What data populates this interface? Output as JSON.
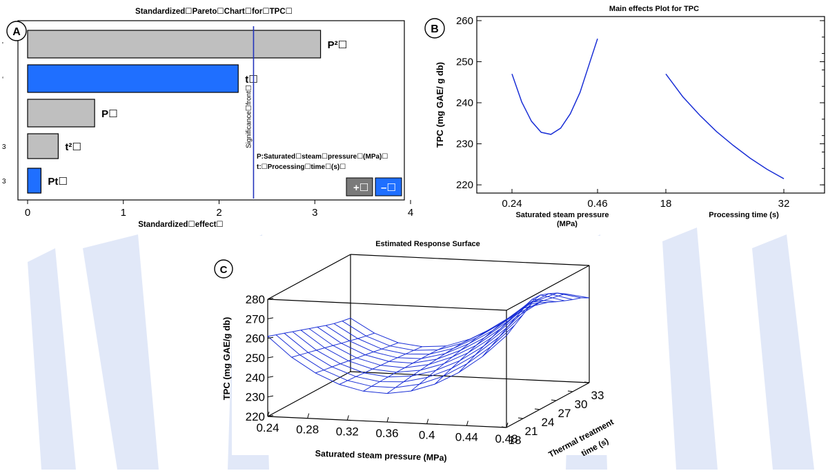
{
  "background": {
    "stripe_color": "#c9d6f3"
  },
  "panel_a": {
    "letter": "A",
    "title": "Standardized☐Pareto☐Chart☐for☐TPC☐",
    "xlabel": "Standardized☐effect☐",
    "significance_label": "Significance☐front☐",
    "legend_p": "P:Saturated☐steam☐pressure☐(MPa)☐",
    "legend_t": "t:☐Processing☐time☐(s)☐",
    "plus_label": "+☐",
    "minus_label": "–☐",
    "left_marks": [
      "'",
      "‘",
      "",
      "3",
      "3"
    ],
    "colors": {
      "positive": "#bfbfbf",
      "negative": "#1f6fff",
      "significance": "#2233bb"
    }
  },
  "panel_b": {
    "letter": "B",
    "title": "Main effects Plot for TPC",
    "ylabel": "TPC (mg GAE/ g db)",
    "xlabel_pressure": "Saturated steam pressure",
    "xlabel_pressure_unit": "(MPa)",
    "xlabel_time": "Processing time (s)",
    "colors": {
      "line": "#1a2fd6"
    }
  },
  "panel_c": {
    "letter": "C",
    "title": "Estimated Response Surface",
    "zlabel": "TPC (mg GAE/g db)",
    "xlabel": "Saturated steam pressure (MPa)",
    "ylabel_line1": "Thermal treatment",
    "ylabel_line2": "time (s)",
    "colors": {
      "mesh": "#1a2fd6"
    }
  },
  "chart_data": [
    {
      "type": "bar",
      "orientation": "horizontal",
      "title": "Standardized☐Pareto☐Chart☐for☐TPC☐",
      "xlabel": "Standardized☐effect☐",
      "xlim": [
        0,
        4
      ],
      "xticks": [
        "0",
        "1",
        "2",
        "3",
        "4"
      ],
      "significance_line": 2.36,
      "categories": [
        "P²☐",
        "t☐",
        "P☐",
        "t²☐",
        "Pt☐"
      ],
      "values": [
        3.06,
        2.2,
        0.7,
        0.32,
        0.14
      ],
      "signs": [
        "+",
        "-",
        "+",
        "+",
        "-"
      ]
    },
    {
      "type": "line",
      "title": "Main effects Plot for TPC",
      "ylabel": "TPC (mg GAE/ g db)",
      "ylim": [
        218,
        261
      ],
      "yticks": [
        "220",
        "230",
        "240",
        "250",
        "260"
      ],
      "series": [
        {
          "x_ticks": [
            "0.24",
            "0.46"
          ],
          "x": [
            0.24,
            0.265,
            0.29,
            0.315,
            0.34,
            0.365,
            0.39,
            0.415,
            0.44,
            0.46
          ],
          "y": [
            247.0,
            240.2,
            235.5,
            232.8,
            232.3,
            233.8,
            237.3,
            242.5,
            249.8,
            255.6
          ]
        },
        {
          "x_ticks": [
            "18",
            "32"
          ],
          "x": [
            18,
            20,
            22,
            24,
            26,
            28,
            30,
            32
          ],
          "y": [
            247.0,
            241.5,
            237.0,
            233.0,
            229.6,
            226.5,
            223.8,
            221.5
          ]
        }
      ]
    },
    {
      "type": "surface",
      "title": "Estimated Response Surface",
      "xlabel": "Saturated steam pressure (MPa)",
      "ylabel": "Thermal treatment time (s)",
      "zlabel": "TPC (mg GAE/g db)",
      "x_ticks": [
        "0.24",
        "0.28",
        "0.32",
        "0.36",
        "0.4",
        "0.44",
        "0.48"
      ],
      "y_ticks": [
        "18",
        "21",
        "24",
        "27",
        "30",
        "33"
      ],
      "z_ticks": [
        "220",
        "230",
        "240",
        "250",
        "260",
        "270",
        "280"
      ],
      "xlim": [
        0.24,
        0.48
      ],
      "ylim": [
        18,
        33
      ],
      "zlim": [
        220,
        280
      ],
      "z_grid": [
        [
          261,
          250.9,
          243.4,
          238.1,
          235.2,
          234.6,
          236.4,
          240.5,
          247.0,
          255.8,
          267.0
        ],
        [
          259.5,
          249.8,
          242.6,
          237.8,
          235.4,
          235.3,
          237.6,
          242.2,
          249.2,
          258.5,
          270.1
        ],
        [
          258.0,
          248.7,
          241.9,
          237.5,
          235.5,
          236.0,
          238.8,
          243.9,
          251.4,
          261.2,
          273.2
        ],
        [
          256.5,
          247.6,
          241.2,
          237.1,
          235.6,
          236.7,
          240.1,
          245.6,
          253.6,
          263.9,
          276.3
        ],
        [
          255.0,
          246.5,
          240.4,
          236.8,
          235.7,
          237.3,
          241.3,
          247.3,
          255.8,
          266.6,
          274.8
        ],
        [
          253.5,
          245.4,
          239.6,
          236.4,
          235.7,
          237.9,
          242.4,
          248.9,
          257.8,
          269.1,
          272.6
        ],
        [
          252.0,
          244.3,
          238.9,
          236.1,
          235.8,
          238.4,
          243.5,
          250.5,
          259.7,
          271.3,
          270.6
        ],
        [
          250.5,
          243.2,
          238.1,
          235.7,
          235.8,
          238.9,
          244.6,
          251.9,
          261.4,
          271.2,
          268.8
        ],
        [
          249.2,
          242.1,
          237.3,
          235.3,
          235.8,
          239.3,
          245.5,
          253.2,
          262.8,
          269.6,
          267.1
        ],
        [
          248.2,
          241.1,
          236.6,
          234.9,
          235.7,
          239.6,
          246.1,
          254.0,
          262.5,
          267.6,
          265.7
        ],
        [
          247.4,
          240.3,
          235.9,
          234.5,
          235.4,
          239.5,
          246.0,
          253.6,
          260.6,
          264.9,
          263.4
        ]
      ]
    }
  ]
}
